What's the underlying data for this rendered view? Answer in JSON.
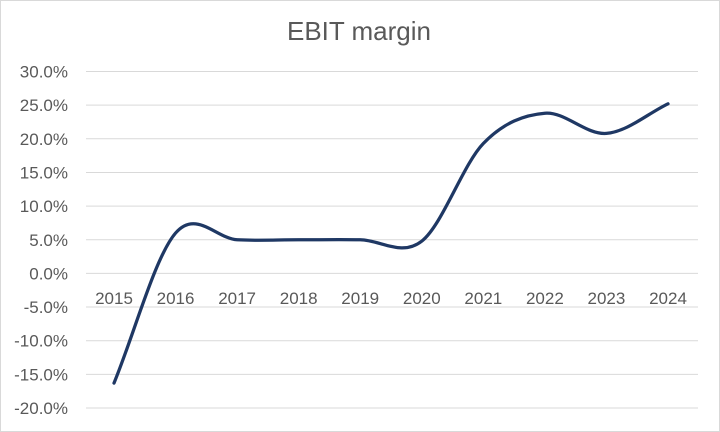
{
  "chart": {
    "background": "#ffffff",
    "border_color": "#d9d9d9"
  },
  "chart_data": {
    "type": "line",
    "title": "EBIT margin",
    "title_color": "#595959",
    "categories": [
      "2015",
      "2016",
      "2017",
      "2018",
      "2019",
      "2020",
      "2021",
      "2022",
      "2023",
      "2024"
    ],
    "series": [
      {
        "name": "EBIT margin",
        "values": [
          -16.3,
          6.0,
          5.0,
          5.0,
          5.0,
          4.8,
          19.3,
          23.8,
          20.8,
          25.2
        ],
        "color": "#1f3864",
        "smooth": true,
        "stroke_width": 3.25
      }
    ],
    "xlabel": "",
    "ylabel": "",
    "ylim": [
      -20,
      30
    ],
    "ytick_step": 5,
    "ytick_labels": [
      "30.0%",
      "25.0%",
      "20.0%",
      "15.0%",
      "10.0%",
      "5.0%",
      "0.0%",
      "-5.0%",
      "-10.0%",
      "-15.0%",
      "-20.0%"
    ],
    "grid": "horizontal",
    "gridline_color": "#d9d9d9",
    "axis_label_color": "#595959",
    "legend": "none"
  }
}
